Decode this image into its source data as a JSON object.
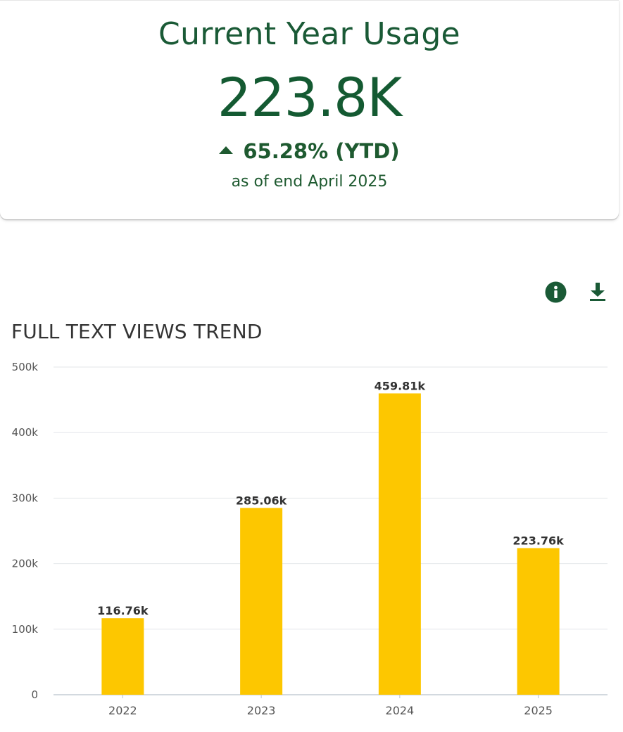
{
  "summary": {
    "title": "Current Year Usage",
    "value": "223.8K",
    "change": "65.28% (YTD)",
    "change_direction": "up",
    "as_of": "as of end April 2025"
  },
  "toolbar": {
    "info_icon": "info-icon",
    "download_icon": "download-icon"
  },
  "colors": {
    "brand_green": "#1a5a36",
    "bar": "#fdc700",
    "grid": "#e3e6ea",
    "axis_text": "#555555"
  },
  "chart_data": {
    "type": "bar",
    "title": "FULL TEXT VIEWS TREND",
    "categories": [
      "2022",
      "2023",
      "2024",
      "2025"
    ],
    "values": [
      116760,
      285060,
      459810,
      223760
    ],
    "data_labels": [
      "116.76k",
      "285.06k",
      "459.81k",
      "223.76k"
    ],
    "yticks": [
      0,
      100000,
      200000,
      300000,
      400000,
      500000
    ],
    "ytick_labels": [
      "0",
      "100k",
      "200k",
      "300k",
      "400k",
      "500k"
    ],
    "ylim": [
      0,
      500000
    ],
    "xlabel": "",
    "ylabel": "",
    "grid": true,
    "legend": false
  }
}
